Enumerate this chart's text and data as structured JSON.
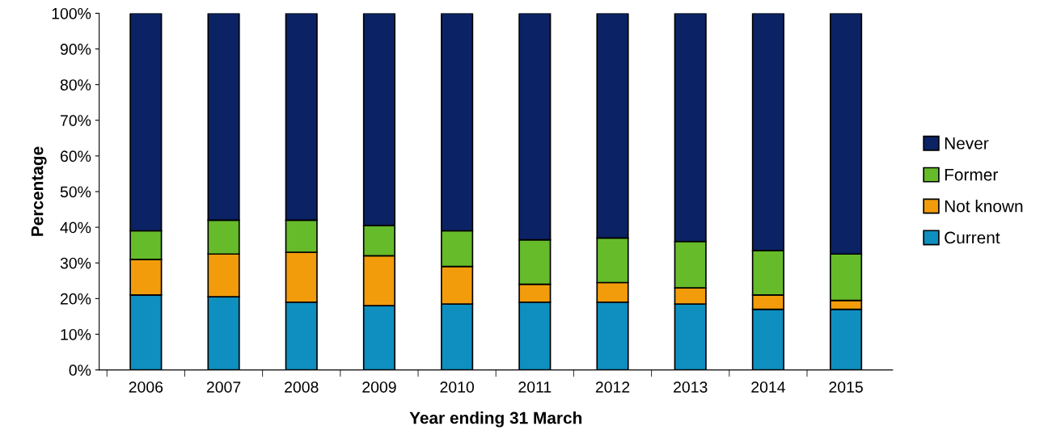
{
  "chart_data": {
    "type": "bar",
    "stacked": true,
    "xlabel": "Year ending 31 March",
    "ylabel": "Percentage",
    "categories": [
      "2006",
      "2007",
      "2008",
      "2009",
      "2010",
      "2011",
      "2012",
      "2013",
      "2014",
      "2015"
    ],
    "series": [
      {
        "name": "Current",
        "color": "#0e8fc0",
        "values": [
          21,
          20.5,
          19,
          18,
          18.5,
          19,
          19,
          18.5,
          17,
          17
        ]
      },
      {
        "name": "Not known",
        "color": "#f29c0b",
        "values": [
          10,
          12,
          14,
          14,
          10.5,
          5,
          5.5,
          4.5,
          4,
          2.5
        ]
      },
      {
        "name": "Former",
        "color": "#66bb2a",
        "values": [
          8,
          9.5,
          9,
          8.5,
          10,
          12.5,
          12.5,
          13,
          12.5,
          13
        ]
      },
      {
        "name": "Never",
        "color": "#0b2264",
        "values": [
          61,
          58,
          58,
          59.5,
          61,
          63.5,
          63,
          64,
          66.5,
          67.5
        ]
      }
    ],
    "ylim": [
      0,
      100
    ],
    "yticks": [
      {
        "value": 0,
        "label": "0%"
      },
      {
        "value": 10,
        "label": "10%"
      },
      {
        "value": 20,
        "label": "20%"
      },
      {
        "value": 30,
        "label": "30%"
      },
      {
        "value": 40,
        "label": "40%"
      },
      {
        "value": 50,
        "label": "50%"
      },
      {
        "value": 60,
        "label": "60%"
      },
      {
        "value": 70,
        "label": "70%"
      },
      {
        "value": 80,
        "label": "80%"
      },
      {
        "value": 90,
        "label": "90%"
      },
      {
        "value": 100,
        "label": "100%"
      }
    ],
    "grid": false,
    "legend": "right"
  }
}
